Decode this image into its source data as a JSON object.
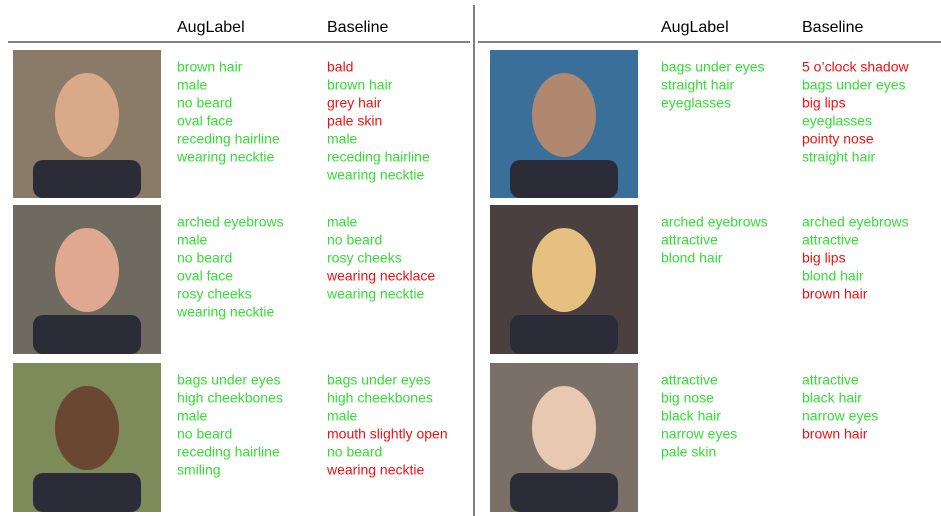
{
  "columns": [
    "AugLabel",
    "Baseline"
  ],
  "panels": [
    {
      "rows": [
        {
          "augLabel": [
            {
              "text": "brown hair",
              "color": "#33dd33"
            },
            {
              "text": "male",
              "color": "#33dd33"
            },
            {
              "text": "no beard",
              "color": "#33dd33"
            },
            {
              "text": "oval face",
              "color": "#33dd33"
            },
            {
              "text": "receding hairline",
              "color": "#33dd33"
            },
            {
              "text": "wearing necktie",
              "color": "#33dd33"
            }
          ],
          "baseline": [
            {
              "text": "bald",
              "color": "#ee1111"
            },
            {
              "text": "brown hair",
              "color": "#33dd33"
            },
            {
              "text": "grey hair",
              "color": "#ee1111"
            },
            {
              "text": "pale skin",
              "color": "#ee1111"
            },
            {
              "text": "male",
              "color": "#33dd33"
            },
            {
              "text": "receding hairline",
              "color": "#33dd33"
            },
            {
              "text": "wearing necktie",
              "color": "#33dd33"
            }
          ]
        },
        {
          "augLabel": [
            {
              "text": "arched eyebrows",
              "color": "#33dd33"
            },
            {
              "text": "male",
              "color": "#33dd33"
            },
            {
              "text": "no beard",
              "color": "#33dd33"
            },
            {
              "text": "oval face",
              "color": "#33dd33"
            },
            {
              "text": "rosy cheeks",
              "color": "#33dd33"
            },
            {
              "text": "wearing necktie",
              "color": "#33dd33"
            }
          ],
          "baseline": [
            {
              "text": "male",
              "color": "#33dd33"
            },
            {
              "text": "no beard",
              "color": "#33dd33"
            },
            {
              "text": "rosy cheeks",
              "color": "#33dd33"
            },
            {
              "text": "wearing necklace",
              "color": "#ee1111"
            },
            {
              "text": "wearing necktie",
              "color": "#33dd33"
            }
          ]
        },
        {
          "augLabel": [
            {
              "text": "bags under eyes",
              "color": "#33dd33"
            },
            {
              "text": "high cheekbones",
              "color": "#33dd33"
            },
            {
              "text": "male",
              "color": "#33dd33"
            },
            {
              "text": "no beard",
              "color": "#33dd33"
            },
            {
              "text": "receding hairline",
              "color": "#33dd33"
            },
            {
              "text": "smiling",
              "color": "#33dd33"
            }
          ],
          "baseline": [
            {
              "text": "bags under eyes",
              "color": "#33dd33"
            },
            {
              "text": "high cheekbones",
              "color": "#33dd33"
            },
            {
              "text": "male",
              "color": "#33dd33"
            },
            {
              "text": "mouth slightly open",
              "color": "#ee1111"
            },
            {
              "text": "no beard",
              "color": "#33dd33"
            },
            {
              "text": "wearing necktie",
              "color": "#ee1111"
            }
          ]
        }
      ]
    },
    {
      "rows": [
        {
          "augLabel": [
            {
              "text": "bags under eyes",
              "color": "#33dd33"
            },
            {
              "text": "straight hair",
              "color": "#33dd33"
            },
            {
              "text": "eyeglasses",
              "color": "#33dd33"
            }
          ],
          "baseline": [
            {
              "text": "5 o’clock shadow",
              "color": "#ee1111"
            },
            {
              "text": "bags under eyes",
              "color": "#33dd33"
            },
            {
              "text": "big lips",
              "color": "#ee1111"
            },
            {
              "text": "eyeglasses",
              "color": "#33dd33"
            },
            {
              "text": "pointy nose",
              "color": "#ee1111"
            },
            {
              "text": "straight hair",
              "color": "#33dd33"
            }
          ]
        },
        {
          "augLabel": [
            {
              "text": "arched eyebrows",
              "color": "#33dd33"
            },
            {
              "text": "attractive",
              "color": "#33dd33"
            },
            {
              "text": "blond hair",
              "color": "#33dd33"
            }
          ],
          "baseline": [
            {
              "text": "arched eyebrows",
              "color": "#33dd33"
            },
            {
              "text": "attractive",
              "color": "#33dd33"
            },
            {
              "text": "big lips",
              "color": "#ee1111"
            },
            {
              "text": "blond hair",
              "color": "#33dd33"
            },
            {
              "text": "brown hair",
              "color": "#ee1111"
            }
          ]
        },
        {
          "augLabel": [
            {
              "text": "attractive",
              "color": "#33dd33"
            },
            {
              "text": "big nose",
              "color": "#33dd33"
            },
            {
              "text": "black hair",
              "color": "#33dd33"
            },
            {
              "text": "narrow eyes",
              "color": "#33dd33"
            },
            {
              "text": "pale skin",
              "color": "#33dd33"
            }
          ],
          "baseline": [
            {
              "text": "attractive",
              "color": "#33dd33"
            },
            {
              "text": "black hair",
              "color": "#33dd33"
            },
            {
              "text": "narrow eyes",
              "color": "#33dd33"
            },
            {
              "text": "brown hair",
              "color": "#ee1111"
            }
          ]
        }
      ]
    }
  ]
}
